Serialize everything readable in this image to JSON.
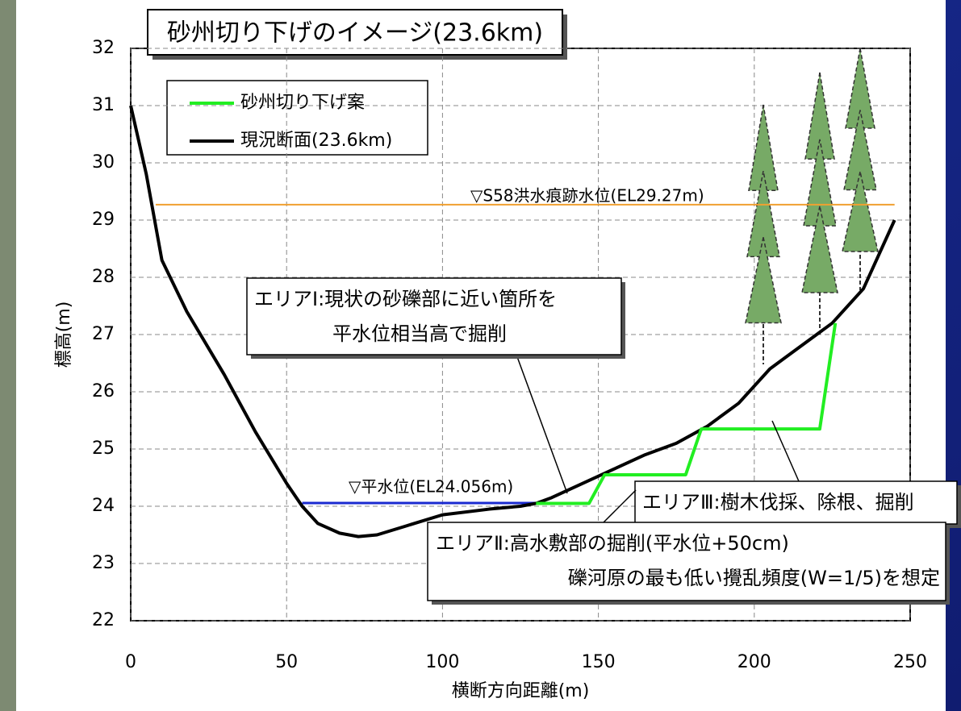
{
  "chart_data": {
    "type": "line",
    "title": "砂州切り下げのイメージ(23.6km)",
    "x_label": "横断方向距離(m)",
    "y_label": "標高(m)",
    "xlim": [
      0,
      250
    ],
    "ylim": [
      22,
      32
    ],
    "xticks": [
      0,
      50,
      100,
      150,
      200,
      250
    ],
    "yticks": [
      22,
      23,
      24,
      25,
      26,
      27,
      28,
      29,
      30,
      31,
      32
    ],
    "grid": true,
    "legend": "upper left",
    "series": [
      {
        "name": "砂州切り下げ案",
        "color": "#22ee22",
        "x": [
          130,
          147,
          152,
          178,
          183,
          221,
          226
        ],
        "values": [
          24.05,
          24.05,
          24.55,
          24.55,
          25.35,
          25.35,
          27.2
        ]
      },
      {
        "name": "現況断面(23.6km)",
        "color": "#000000",
        "x": [
          0,
          5,
          10,
          18,
          30,
          40,
          50,
          55,
          60,
          67,
          73,
          79,
          88,
          100,
          115,
          125,
          130,
          135,
          145,
          155,
          165,
          175,
          185,
          195,
          205,
          210,
          220,
          225,
          235,
          245
        ],
        "values": [
          31,
          29.8,
          28.3,
          27.4,
          26.3,
          25.3,
          24.4,
          24.0,
          23.7,
          23.53,
          23.47,
          23.5,
          23.65,
          23.85,
          23.95,
          24.0,
          24.05,
          24.15,
          24.4,
          24.65,
          24.9,
          25.1,
          25.4,
          25.8,
          26.4,
          26.6,
          27.0,
          27.2,
          27.8,
          29.0
        ]
      }
    ],
    "reference_lines": [
      {
        "label": "▽S58洪水痕跡水位(EL29.27m)",
        "value": 29.27,
        "xrange": [
          8,
          245
        ],
        "color": "#f0a030"
      },
      {
        "label": "▽平水位(EL24.056m)",
        "value": 24.056,
        "xrange": [
          55,
          130
        ],
        "color": "#1a2ad0"
      }
    ],
    "annotations": [
      {
        "lines": [
          "エリアⅠ:現状の砂礫部に近い箇所を",
          "平水位相当高で掘削"
        ]
      },
      {
        "lines": [
          "エリアⅢ:樹木伐採、除根、掘削"
        ]
      },
      {
        "lines": [
          "エリアⅡ:高水敷部の掘削(平水位+50cm)",
          "礫河原の最も低い攪乱頻度(W=1/5)を想定"
        ]
      }
    ]
  }
}
